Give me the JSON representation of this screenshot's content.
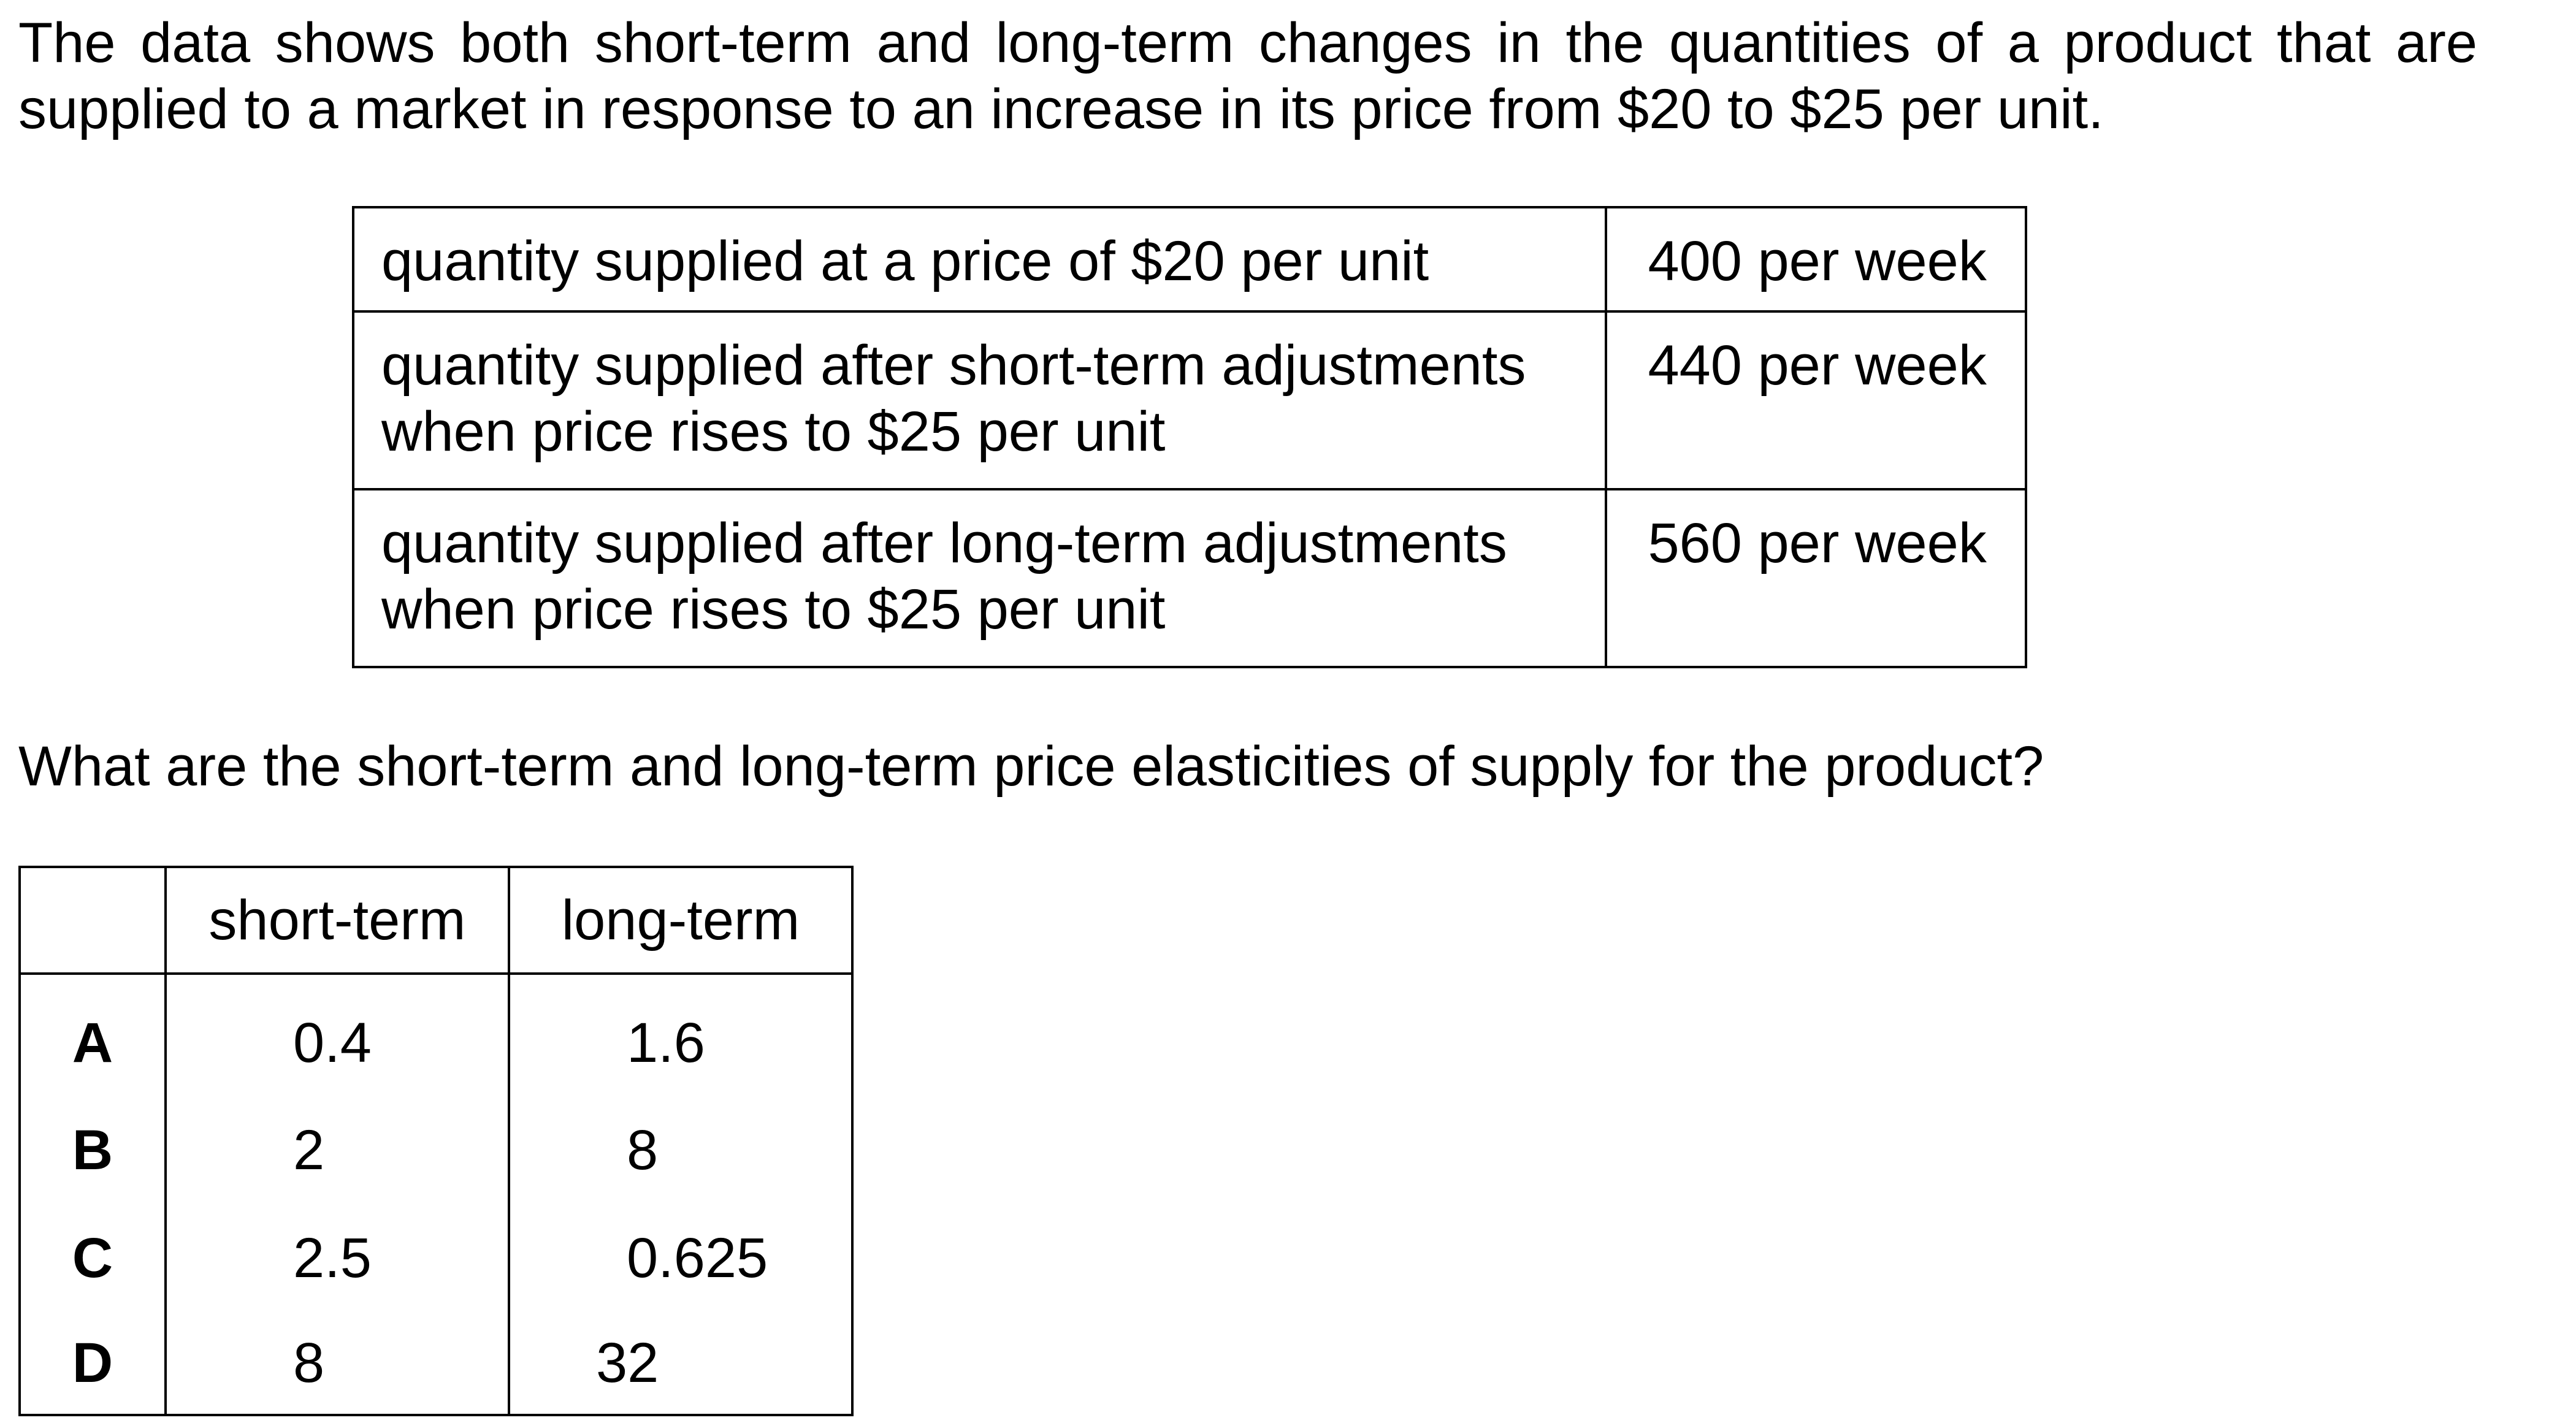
{
  "intro": "The data shows both short-term and long-term changes in the quantities of a product that are supplied to a market in response to an increase in its price from $20 to $25 per unit.",
  "data_table": {
    "rows": [
      {
        "description": "quantity supplied at a price of $20 per unit",
        "quantity": "400 per week"
      },
      {
        "description": "quantity supplied after short-term adjustments when price rises to $25 per unit",
        "quantity": "440 per week"
      },
      {
        "description": "quantity supplied after long-term adjustments when price rises to $25 per unit",
        "quantity": "560 per week"
      }
    ]
  },
  "question": "What are the short-term and long-term price elasticities of supply for the product?",
  "options_table": {
    "headers": [
      "",
      "short-term",
      "long-term"
    ],
    "rows": [
      {
        "letter": "A",
        "short_term": "0.4",
        "long_term": "1.6"
      },
      {
        "letter": "B",
        "short_term": "2",
        "long_term": "8"
      },
      {
        "letter": "C",
        "short_term": "2.5",
        "long_term": "0.625"
      },
      {
        "letter": "D",
        "short_term": "8",
        "long_term": "32"
      }
    ]
  }
}
